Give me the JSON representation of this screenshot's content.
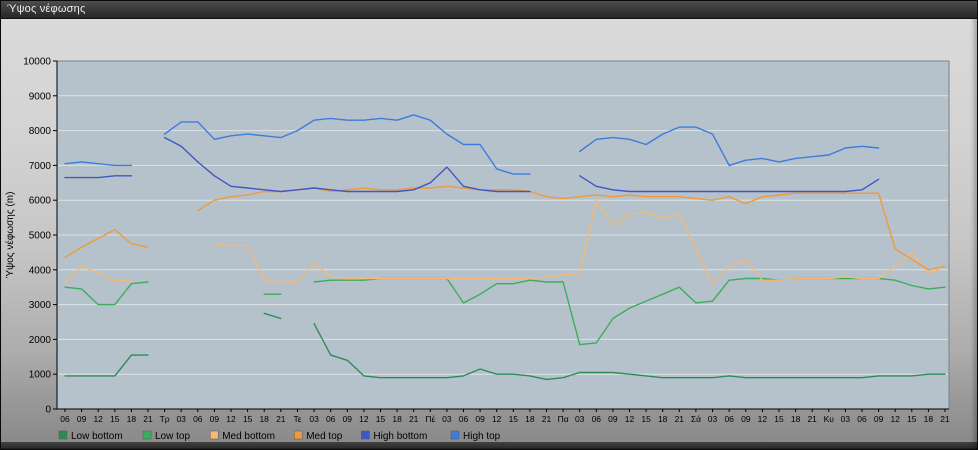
{
  "window": {
    "title": "Ύψος νέφωσης"
  },
  "colors": {
    "plot_bg": "#B6C2CB",
    "grid": "#DCE3E8",
    "axis": "#000000",
    "titlebar_text": "#F2F2F2",
    "low_bottom": "#2E8B57",
    "low_top": "#3CAD5E",
    "med_bottom": "#F3B87A",
    "med_top": "#EF9A3C",
    "high_bottom": "#4156C2",
    "high_top": "#3B7CDD"
  },
  "chart_data": {
    "type": "line",
    "title": "Ύψος νέφωσης",
    "xlabel": "",
    "ylabel": "Ύψος νέφωσης (m)",
    "ylim": [
      0,
      10000
    ],
    "ytick_step": 1000,
    "yticks": [
      0,
      1000,
      2000,
      3000,
      4000,
      5000,
      6000,
      7000,
      8000,
      9000,
      10000
    ],
    "grid": "horizontal",
    "legend_position": "bottom-left",
    "categories": [
      "06",
      "09",
      "12",
      "15",
      "18",
      "21",
      "Τρ",
      "03",
      "06",
      "09",
      "12",
      "15",
      "18",
      "21",
      "Τε",
      "03",
      "06",
      "09",
      "12",
      "15",
      "18",
      "21",
      "Πέ",
      "03",
      "06",
      "09",
      "12",
      "15",
      "18",
      "21",
      "Πα",
      "03",
      "06",
      "09",
      "12",
      "15",
      "18",
      "21",
      "Σά",
      "03",
      "06",
      "09",
      "12",
      "15",
      "18",
      "21",
      "Κυ",
      "03",
      "06",
      "09",
      "12",
      "15",
      "18",
      "21"
    ],
    "series": [
      {
        "name": "Low bottom",
        "color": "#2E8B57",
        "values": [
          950,
          950,
          950,
          950,
          1550,
          1550,
          null,
          null,
          null,
          null,
          null,
          null,
          2750,
          2600,
          null,
          2450,
          1550,
          1400,
          950,
          900,
          900,
          900,
          900,
          900,
          950,
          1150,
          1000,
          1000,
          950,
          850,
          900,
          1050,
          1050,
          1050,
          1000,
          950,
          900,
          900,
          900,
          900,
          950,
          900,
          900,
          900,
          900,
          900,
          900,
          900,
          900,
          950,
          950,
          950,
          1000,
          1000
        ]
      },
      {
        "name": "Low top",
        "color": "#3CAD5E",
        "values": [
          3500,
          3450,
          3000,
          3000,
          3600,
          3650,
          null,
          null,
          null,
          null,
          null,
          null,
          3300,
          3300,
          null,
          3650,
          3700,
          3700,
          3700,
          3750,
          3750,
          3750,
          3750,
          3750,
          3050,
          3300,
          3600,
          3600,
          3700,
          3650,
          3650,
          1850,
          1900,
          2600,
          2900,
          3100,
          3300,
          3500,
          3050,
          3100,
          3700,
          3750,
          3750,
          3700,
          3750,
          3750,
          3750,
          3750,
          3750,
          3750,
          3700,
          3550,
          3450,
          3500
        ]
      },
      {
        "name": "Med bottom",
        "color": "#F3B87A",
        "values": [
          3600,
          4100,
          3900,
          3700,
          3700,
          null,
          null,
          null,
          null,
          4750,
          4700,
          4700,
          3700,
          3650,
          3650,
          4200,
          3800,
          3750,
          3750,
          3750,
          3750,
          3750,
          3750,
          3750,
          3750,
          3750,
          3750,
          3750,
          3750,
          3800,
          3850,
          3900,
          6000,
          5300,
          5600,
          5650,
          5500,
          5600,
          4600,
          3600,
          4100,
          4300,
          3700,
          3700,
          3750,
          3750,
          3750,
          3800,
          3750,
          3750,
          4100,
          4500,
          3900,
          4100
        ]
      },
      {
        "name": "Med top",
        "color": "#EF9A3C",
        "values": [
          4350,
          4650,
          4900,
          5150,
          4750,
          4650,
          null,
          null,
          5700,
          6000,
          6100,
          6150,
          6250,
          6250,
          6300,
          6350,
          6250,
          6300,
          6350,
          6300,
          6300,
          6350,
          6350,
          6400,
          6350,
          6300,
          6300,
          6300,
          6250,
          6100,
          6050,
          6100,
          6150,
          6100,
          6150,
          6100,
          6100,
          6100,
          6050,
          6000,
          6100,
          5900,
          6100,
          6150,
          6200,
          6200,
          6200,
          6200,
          6200,
          6200,
          4600,
          4300,
          4000,
          4100
        ]
      },
      {
        "name": "High bottom",
        "color": "#4156C2",
        "values": [
          6650,
          6650,
          6650,
          6700,
          6700,
          null,
          7800,
          7550,
          7100,
          6700,
          6400,
          6350,
          6300,
          6250,
          6300,
          6350,
          6300,
          6250,
          6250,
          6250,
          6250,
          6300,
          6500,
          6950,
          6400,
          6300,
          6250,
          6250,
          6250,
          null,
          null,
          6700,
          6400,
          6300,
          6250,
          6250,
          6250,
          6250,
          6250,
          6250,
          6250,
          6250,
          6250,
          6250,
          6250,
          6250,
          6250,
          6250,
          6300,
          6600,
          null,
          null,
          null,
          null
        ]
      },
      {
        "name": "High top",
        "color": "#3B7CDD",
        "values": [
          7050,
          7100,
          7050,
          7000,
          7000,
          null,
          7900,
          8250,
          8250,
          7750,
          7850,
          7900,
          7850,
          7800,
          8000,
          8300,
          8350,
          8300,
          8300,
          8350,
          8300,
          8450,
          8300,
          7900,
          7600,
          7600,
          6900,
          6750,
          6750,
          null,
          null,
          7400,
          7750,
          7800,
          7750,
          7600,
          7900,
          8100,
          8100,
          7900,
          7000,
          7150,
          7200,
          7100,
          7200,
          7250,
          7300,
          7500,
          7550,
          7500,
          null,
          null,
          null,
          null
        ]
      }
    ]
  }
}
